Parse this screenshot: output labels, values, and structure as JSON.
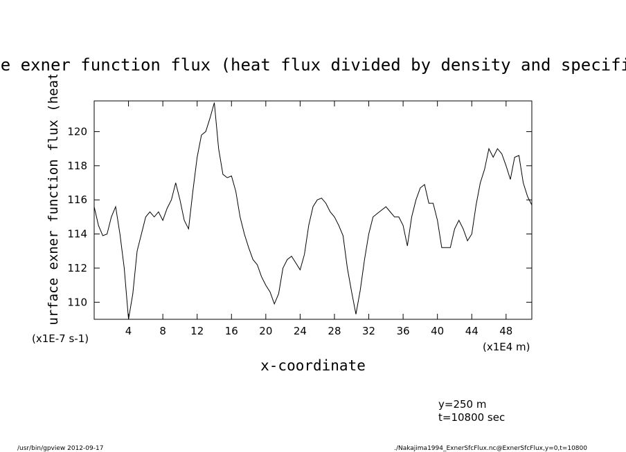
{
  "chart_data": {
    "type": "line",
    "title": "surface exner function flux (heat flux divided by density and specific heat)",
    "xlabel": "x-coordinate",
    "ylabel": "surface exner function flux (heat flux divided by density and specific heat)",
    "x_unit": "(x1E4 m)",
    "y_unit": "(x1E-7 s-1)",
    "annotations": [
      "y=250 m",
      "t=10800 sec"
    ],
    "footer_left": "/usr/bin/gpview  2012-09-17",
    "footer_right": "./Nakajima1994_ExnerSfcFlux.nc@ExnerSfcFlux,y=0,t=10800",
    "xlim": [
      0,
      51
    ],
    "ylim": [
      109,
      121.8
    ],
    "xticks": [
      4,
      8,
      12,
      16,
      20,
      24,
      28,
      32,
      36,
      40,
      44,
      48
    ],
    "yticks": [
      110,
      112,
      114,
      116,
      118,
      120
    ],
    "x": [
      0,
      0.5,
      1,
      1.5,
      2,
      2.5,
      3,
      3.5,
      4,
      4.5,
      5,
      5.5,
      6,
      6.5,
      7,
      7.5,
      8,
      8.5,
      9,
      9.5,
      10,
      10.5,
      11,
      11.5,
      12,
      12.5,
      13,
      13.5,
      14,
      14.5,
      15,
      15.5,
      16,
      16.5,
      17,
      17.5,
      18,
      18.5,
      19,
      19.5,
      20,
      20.5,
      21,
      21.5,
      22,
      22.5,
      23,
      23.5,
      24,
      24.5,
      25,
      25.5,
      26,
      26.5,
      27,
      27.5,
      28,
      28.5,
      29,
      29.5,
      30,
      30.5,
      31,
      31.5,
      32,
      32.5,
      33,
      33.5,
      34,
      34.5,
      35,
      35.5,
      36,
      36.5,
      37,
      37.5,
      38,
      38.5,
      39,
      39.5,
      40,
      40.5,
      41,
      41.5,
      42,
      42.5,
      43,
      43.5,
      44,
      44.5,
      45,
      45.5,
      46,
      46.5,
      47,
      47.5,
      48,
      48.5,
      49,
      49.5,
      50,
      50.5,
      51
    ],
    "series": [
      {
        "color": "#000000",
        "values": [
          115.6,
          114.5,
          113.9,
          114.0,
          115.0,
          115.6,
          114.0,
          112.0,
          109.0,
          110.5,
          113.0,
          114.0,
          115.0,
          115.3,
          115.0,
          115.3,
          114.8,
          115.5,
          116.0,
          117.0,
          116.0,
          114.8,
          114.3,
          116.5,
          118.5,
          119.8,
          120.0,
          120.8,
          121.7,
          119.0,
          117.5,
          117.3,
          117.4,
          116.5,
          115.0,
          114.0,
          113.2,
          112.5,
          112.2,
          111.5,
          111.0,
          110.6,
          109.9,
          110.5,
          112.0,
          112.5,
          112.7,
          112.3,
          111.9,
          112.8,
          114.5,
          115.6,
          116.0,
          116.1,
          115.8,
          115.3,
          115.0,
          114.5,
          113.9,
          112.0,
          110.6,
          109.3,
          110.7,
          112.5,
          114.0,
          115.0,
          115.2,
          115.4,
          115.6,
          115.3,
          115.0,
          115.0,
          114.5,
          113.3,
          115.0,
          116.0,
          116.7,
          116.9,
          115.8,
          115.8,
          114.8,
          113.2,
          113.2,
          113.2,
          114.3,
          114.8,
          114.3,
          113.6,
          114.0,
          115.7,
          117.0,
          117.8,
          119.0,
          118.5,
          119.0,
          118.7,
          118.0,
          117.2,
          118.5,
          118.6,
          117.0,
          116.2,
          115.7
        ]
      }
    ]
  }
}
